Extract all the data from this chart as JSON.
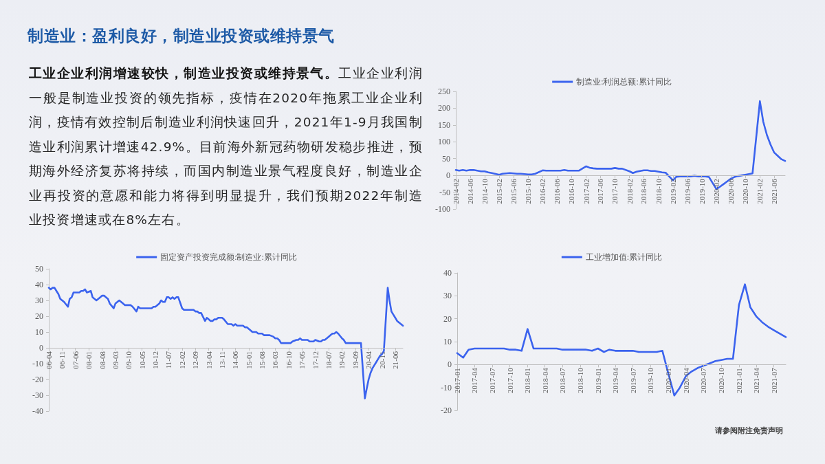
{
  "chart_data": [
    {
      "type": "other",
      "title": "制造业：盈利良好，制造业投资或维持景气",
      "annotations": [
        "工业企业利润增速较快，制造业投资或维持景气。",
        "工业企业利润一般是制造业投资的领先指标，疫情在2020年拖累工业企业利润，疫情有效控制后制造业利润快速回升，2021年1-9月我国制造业利润累计增速42.9%。目前海外新冠药物研发稳步推进，预期海外经济复苏将持续，而国内制造业景气程度良好，制造业企业再投资的意愿和能力将得到明显提升，我们预期2022年制造业投资增速或在8%左右。",
        "请参阅附注免责声明"
      ]
    },
    {
      "type": "line",
      "legend": "top",
      "grid": false,
      "marker": "none",
      "line_style": "solid",
      "x": [
        "2014-02",
        "2014-03",
        "2014-04",
        "2014-05",
        "2014-06",
        "2014-07",
        "2014-08",
        "2014-09",
        "2014-10",
        "2014-11",
        "2014-12",
        "2015-02",
        "2015-03",
        "2015-04",
        "2015-05",
        "2015-06",
        "2015-07",
        "2015-08",
        "2015-09",
        "2015-10",
        "2015-11",
        "2015-12",
        "2016-02",
        "2016-03",
        "2016-04",
        "2016-05",
        "2016-06",
        "2016-07",
        "2016-08",
        "2016-09",
        "2016-10",
        "2016-11",
        "2016-12",
        "2017-02",
        "2017-03",
        "2017-04",
        "2017-05",
        "2017-06",
        "2017-07",
        "2017-08",
        "2017-09",
        "2017-10",
        "2017-11",
        "2017-12",
        "2018-02",
        "2018-03",
        "2018-04",
        "2018-05",
        "2018-06",
        "2018-07",
        "2018-08",
        "2018-09",
        "2018-10",
        "2018-11",
        "2018-12",
        "2019-02",
        "2019-03",
        "2019-04",
        "2019-05",
        "2019-06",
        "2019-07",
        "2019-08",
        "2019-09",
        "2019-10",
        "2019-11",
        "2019-12",
        "2020-02",
        "2020-03",
        "2020-04",
        "2020-05",
        "2020-06",
        "2020-07",
        "2020-08",
        "2020-09",
        "2020-10",
        "2020-11",
        "2020-12",
        "2021-02",
        "2021-03",
        "2021-04",
        "2021-05",
        "2021-06",
        "2021-07",
        "2021-08",
        "2021-09"
      ],
      "series": [
        {
          "name": "制造业:利润总额:累计同比",
          "color": "#3b63ee",
          "values": [
            16,
            14,
            16,
            14,
            16,
            16,
            14,
            12,
            12,
            9,
            7,
            2,
            5,
            6,
            7,
            6,
            5,
            5,
            4,
            3,
            3,
            5,
            15,
            14,
            14,
            14,
            14,
            14,
            16,
            14,
            14,
            14,
            14,
            27,
            23,
            21,
            20,
            20,
            20,
            20,
            20,
            22,
            20,
            20,
            12,
            7,
            11,
            13,
            15,
            15,
            13,
            13,
            11,
            9,
            8,
            -15,
            -4,
            -3,
            -3,
            -3,
            -3,
            -1,
            -3,
            -3,
            -3,
            -5,
            -41,
            -34,
            -26,
            -18,
            -10,
            -5,
            -2,
            0,
            2,
            4,
            6,
            221,
            160,
            120,
            92,
            68,
            58,
            48,
            43
          ]
        }
      ],
      "xlim": [
        "2014-02",
        "2021-09"
      ],
      "xticks": [
        "2014-02",
        "2014-06",
        "2014-10",
        "2015-02",
        "2015-06",
        "2015-10",
        "2016-02",
        "2016-06",
        "2016-10",
        "2017-02",
        "2017-06",
        "2017-10",
        "2018-02",
        "2018-06",
        "2018-10",
        "2019-02",
        "2019-06",
        "2019-10",
        "2020-02",
        "2020-06",
        "2020-10",
        "2021-02",
        "2021-06"
      ],
      "ylim": [
        -100,
        250
      ],
      "yticks": [
        -100,
        -50,
        0,
        50,
        100,
        150,
        200,
        250
      ]
    },
    {
      "type": "line",
      "legend": "top",
      "grid": false,
      "marker": "none",
      "line_style": "solid",
      "x": [
        "2006-04",
        "2006-05",
        "2006-06",
        "2006-07",
        "2006-08",
        "2006-09",
        "2006-10",
        "2006-11",
        "2006-12",
        "2007-02",
        "2007-03",
        "2007-04",
        "2007-05",
        "2007-06",
        "2007-07",
        "2007-08",
        "2007-09",
        "2007-10",
        "2007-11",
        "2007-12",
        "2008-02",
        "2008-03",
        "2008-04",
        "2008-05",
        "2008-06",
        "2008-07",
        "2008-08",
        "2008-09",
        "2008-10",
        "2008-11",
        "2008-12",
        "2009-02",
        "2009-03",
        "2009-04",
        "2009-05",
        "2009-06",
        "2009-07",
        "2009-08",
        "2009-09",
        "2009-10",
        "2009-11",
        "2009-12",
        "2010-02",
        "2010-03",
        "2010-04",
        "2010-05",
        "2010-06",
        "2010-07",
        "2010-08",
        "2010-09",
        "2010-10",
        "2010-11",
        "2010-12",
        "2011-02",
        "2011-03",
        "2011-04",
        "2011-05",
        "2011-06",
        "2011-07",
        "2011-08",
        "2011-09",
        "2011-10",
        "2011-11",
        "2011-12",
        "2012-02",
        "2012-03",
        "2012-04",
        "2012-05",
        "2012-06",
        "2012-07",
        "2012-08",
        "2012-09",
        "2012-10",
        "2012-11",
        "2012-12",
        "2013-02",
        "2013-03",
        "2013-04",
        "2013-05",
        "2013-06",
        "2013-07",
        "2013-08",
        "2013-09",
        "2013-10",
        "2013-11",
        "2013-12",
        "2014-02",
        "2014-03",
        "2014-04",
        "2014-05",
        "2014-06",
        "2014-07",
        "2014-08",
        "2014-09",
        "2014-10",
        "2014-11",
        "2014-12",
        "2015-02",
        "2015-03",
        "2015-04",
        "2015-05",
        "2015-06",
        "2015-07",
        "2015-08",
        "2015-09",
        "2015-10",
        "2015-11",
        "2015-12",
        "2016-02",
        "2016-03",
        "2016-04",
        "2016-05",
        "2016-06",
        "2016-07",
        "2016-08",
        "2016-09",
        "2016-10",
        "2016-11",
        "2016-12",
        "2017-02",
        "2017-03",
        "2017-04",
        "2017-05",
        "2017-06",
        "2017-07",
        "2017-08",
        "2017-09",
        "2017-10",
        "2017-11",
        "2017-12",
        "2018-02",
        "2018-03",
        "2018-04",
        "2018-05",
        "2018-06",
        "2018-07",
        "2018-08",
        "2018-09",
        "2018-10",
        "2018-11",
        "2018-12",
        "2019-02",
        "2019-03",
        "2019-04",
        "2019-05",
        "2019-06",
        "2019-07",
        "2019-08",
        "2019-09",
        "2019-10",
        "2019-11",
        "2019-12",
        "2020-02",
        "2020-03",
        "2020-04",
        "2020-05",
        "2020-06",
        "2020-07",
        "2020-08",
        "2020-09",
        "2020-10",
        "2020-11",
        "2020-12",
        "2021-02",
        "2021-03",
        "2021-04",
        "2021-05",
        "2021-06",
        "2021-07",
        "2021-08",
        "2021-09",
        "2021-10"
      ],
      "series": [
        {
          "name": "固定资产投资完成额:制造业:累计同比",
          "color": "#3b63ee",
          "values": [
            38,
            37,
            38,
            38,
            36,
            34,
            31,
            30,
            29,
            26,
            31,
            32,
            35,
            35,
            35,
            35,
            36,
            36,
            37,
            35,
            36,
            32,
            31,
            30,
            31,
            32,
            33,
            33,
            32,
            31,
            28,
            25,
            28,
            29,
            30,
            29,
            28,
            27,
            27,
            27,
            27,
            26,
            23,
            26,
            25,
            25,
            25,
            25,
            25,
            25,
            25,
            26,
            26,
            28,
            30,
            29,
            29,
            32,
            32,
            31,
            32,
            31,
            32,
            32,
            25,
            24,
            24,
            24,
            24,
            24,
            24,
            23,
            23,
            22,
            22,
            17,
            19,
            18,
            17,
            17,
            18,
            18,
            19,
            19,
            19,
            18,
            15,
            15,
            15,
            14,
            15,
            14,
            14,
            14,
            14,
            13,
            13,
            11,
            10,
            10,
            10,
            9,
            9,
            9,
            8,
            8,
            8,
            8,
            7,
            6,
            6,
            5,
            3,
            3,
            3,
            3,
            3,
            3,
            4,
            5,
            5,
            6,
            5,
            5,
            5,
            5,
            4,
            4,
            4,
            5,
            4,
            4,
            5,
            5,
            6,
            7,
            8,
            9,
            9,
            10,
            9,
            6,
            5,
            3,
            3,
            3,
            3,
            3,
            3,
            3,
            3,
            3,
            -32,
            -26,
            -20,
            -16,
            -13,
            -11,
            -9,
            -7,
            -5,
            -4,
            -2,
            38,
            30,
            23,
            21,
            19,
            17,
            16,
            15,
            14
          ]
        }
      ],
      "xlim": [
        "2006-04",
        "2021-10"
      ],
      "xticks": [
        {
          "value": "2006-04",
          "label": "06-04"
        },
        {
          "value": "2006-11",
          "label": "06-11"
        },
        {
          "value": "2007-06",
          "label": "07-06"
        },
        {
          "value": "2008-01",
          "label": "08-01"
        },
        {
          "value": "2008-08",
          "label": "08-08"
        },
        {
          "value": "2009-03",
          "label": "09-03"
        },
        {
          "value": "2009-10",
          "label": "09-10"
        },
        {
          "value": "2010-05",
          "label": "10-05"
        },
        {
          "value": "2010-12",
          "label": "10-12"
        },
        {
          "value": "2011-07",
          "label": "11-07"
        },
        {
          "value": "2012-02",
          "label": "12-02"
        },
        {
          "value": "2012-09",
          "label": "12-09"
        },
        {
          "value": "2013-04",
          "label": "13-04"
        },
        {
          "value": "2013-11",
          "label": "13-11"
        },
        {
          "value": "2014-06",
          "label": "14-06"
        },
        {
          "value": "2015-01",
          "label": "15-01"
        },
        {
          "value": "2015-08",
          "label": "15-08"
        },
        {
          "value": "2016-03",
          "label": "16-03"
        },
        {
          "value": "2016-10",
          "label": "16-10"
        },
        {
          "value": "2017-05",
          "label": "17-05"
        },
        {
          "value": "2017-12",
          "label": "17-12"
        },
        {
          "value": "2018-07",
          "label": "18-07"
        },
        {
          "value": "2019-02",
          "label": "19-02"
        },
        {
          "value": "2019-09",
          "label": "19-09"
        },
        {
          "value": "2020-04",
          "label": "20-04"
        },
        {
          "value": "2020-11",
          "label": "20-11"
        },
        {
          "value": "2021-06",
          "label": "21-06"
        }
      ],
      "ylim": [
        -40,
        50
      ],
      "yticks": [
        -40,
        -30,
        -20,
        -10,
        0,
        10,
        20,
        30,
        40,
        50
      ]
    },
    {
      "type": "line",
      "legend": "top",
      "grid": false,
      "marker": "none",
      "line_style": "solid",
      "x": [
        "2017-01",
        "2017-02",
        "2017-03",
        "2017-04",
        "2017-05",
        "2017-06",
        "2017-07",
        "2017-08",
        "2017-09",
        "2017-10",
        "2017-11",
        "2017-12",
        "2018-01",
        "2018-02",
        "2018-03",
        "2018-04",
        "2018-05",
        "2018-06",
        "2018-07",
        "2018-08",
        "2018-09",
        "2018-10",
        "2018-11",
        "2018-12",
        "2019-01",
        "2019-02",
        "2019-03",
        "2019-04",
        "2019-05",
        "2019-06",
        "2019-07",
        "2019-08",
        "2019-09",
        "2019-10",
        "2019-11",
        "2019-12",
        "2020-01",
        "2020-02",
        "2020-03",
        "2020-04",
        "2020-05",
        "2020-06",
        "2020-07",
        "2020-08",
        "2020-09",
        "2020-10",
        "2020-11",
        "2020-12",
        "2021-01",
        "2021-02",
        "2021-03",
        "2021-04",
        "2021-05",
        "2021-06",
        "2021-07",
        "2021-08",
        "2021-09"
      ],
      "series": [
        {
          "name": "工业增加值:累计同比",
          "color": "#3b63ee",
          "values": [
            5,
            3,
            6.5,
            7,
            7,
            7,
            7,
            7,
            7,
            6.5,
            6.5,
            6,
            15.5,
            7,
            7,
            7,
            7,
            7,
            6.5,
            6.5,
            6.5,
            6.5,
            6.5,
            6,
            7,
            5.5,
            6.5,
            6,
            6,
            6,
            6,
            5.5,
            5.5,
            5.5,
            5.5,
            6,
            -4,
            -13.5,
            -10,
            -5,
            -3,
            -1.5,
            -0.5,
            0.5,
            1.5,
            2,
            2.5,
            2.5,
            26,
            35,
            25,
            21,
            18.5,
            16.5,
            15,
            13.5,
            12
          ]
        }
      ],
      "xlim": [
        "2017-01",
        "2021-09"
      ],
      "xticks": [
        "2017-01",
        "2017-04",
        "2017-07",
        "2017-10",
        "2018-01",
        "2018-04",
        "2018-07",
        "2018-10",
        "2019-01",
        "2019-04",
        "2019-07",
        "2019-10",
        "2020-01",
        "2020-04",
        "2020-07",
        "2020-10",
        "2021-01",
        "2021-04",
        "2021-07"
      ],
      "ylim": [
        -20,
        40
      ],
      "yticks": [
        -20,
        -10,
        0,
        10,
        20,
        30,
        40
      ]
    }
  ]
}
